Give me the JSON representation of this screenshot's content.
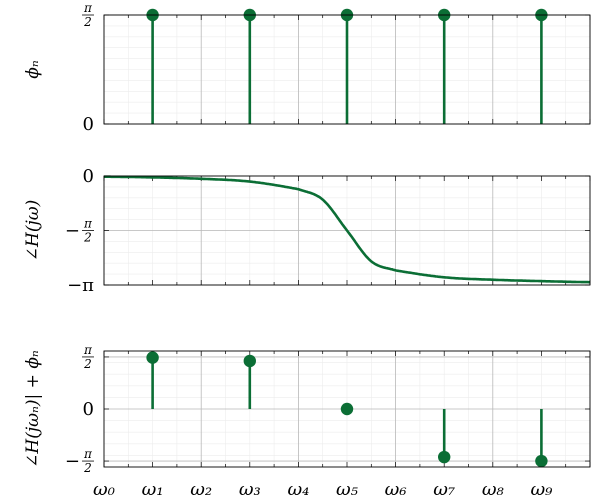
{
  "chart_data": [
    {
      "type": "stem",
      "ylabel": "ϕₙ",
      "x": [
        1,
        3,
        5,
        7,
        9
      ],
      "y": [
        1.5708,
        1.5708,
        1.5708,
        1.5708,
        1.5708
      ],
      "xlim": [
        0,
        10
      ],
      "ylim": [
        0,
        1.5708
      ],
      "yticks": [
        {
          "value": 0,
          "label": "0"
        },
        {
          "value": 1.5708,
          "label_num": "π",
          "label_den": "2"
        }
      ],
      "grid": true,
      "color": "#0b6e35"
    },
    {
      "type": "line",
      "ylabel": "∠H(jω)",
      "curve": {
        "model": "-atan(((x - 5)/0.9)^3 * 0.6) - 1.5708 style phase drop",
        "x": [
          0,
          1,
          2,
          3,
          4,
          4.5,
          5,
          5.5,
          6,
          7,
          8,
          9,
          10
        ],
        "y": [
          -0.02,
          -0.04,
          -0.08,
          -0.16,
          -0.38,
          -0.68,
          -1.5708,
          -2.46,
          -2.72,
          -2.92,
          -2.99,
          -3.03,
          -3.06
        ]
      },
      "xlim": [
        0,
        10
      ],
      "ylim": [
        -3.1416,
        0
      ],
      "yticks": [
        {
          "value": 0,
          "label": "0"
        },
        {
          "value": -1.5708,
          "label_sign": "−",
          "label_num": "π",
          "label_den": "2"
        },
        {
          "value": -3.1416,
          "label": "−π"
        }
      ],
      "grid": true,
      "color": "#0b6e35"
    },
    {
      "type": "stem",
      "ylabel": "∠H(jωₙ)| + ϕₙ",
      "x": [
        1,
        3,
        5,
        7,
        9
      ],
      "y": [
        1.55,
        1.45,
        0,
        -1.45,
        -1.57
      ],
      "xlim": [
        0,
        10
      ],
      "ylim": [
        -1.75,
        1.75
      ],
      "yticks": [
        {
          "value": 1.5708,
          "label_num": "π",
          "label_den": "2"
        },
        {
          "value": 0,
          "label": "0"
        },
        {
          "value": -1.5708,
          "label_sign": "−",
          "label_num": "π",
          "label_den": "2"
        }
      ],
      "grid": true,
      "color": "#0b6e35"
    }
  ],
  "x_axis": {
    "tick_labels": [
      "ω₀",
      "ω₁",
      "ω₂",
      "ω₃",
      "ω₄",
      "ω₅",
      "ω₆",
      "ω₇",
      "ω₈",
      "ω₉"
    ],
    "tick_values": [
      0,
      1,
      2,
      3,
      4,
      5,
      6,
      7,
      8,
      9
    ]
  }
}
